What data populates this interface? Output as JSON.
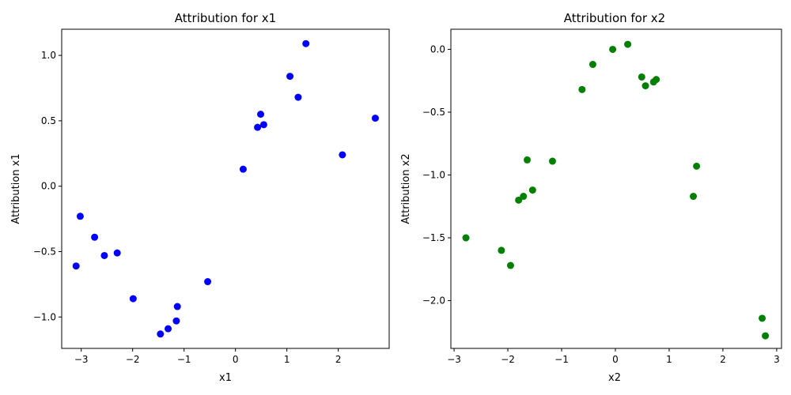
{
  "chart_data": [
    {
      "type": "scatter",
      "title": "Attribution for x1",
      "xlabel": "x1",
      "ylabel": "Attribution x1",
      "xlim": [
        -3.38,
        2.99
      ],
      "ylim": [
        -1.24,
        1.2
      ],
      "xticks": [
        -3,
        -2,
        -1,
        0,
        1,
        2
      ],
      "xtick_labels": [
        "−3",
        "−2",
        "−1",
        "0",
        "1",
        "2"
      ],
      "yticks": [
        -1.0,
        -0.5,
        0.0,
        0.5,
        1.0
      ],
      "ytick_labels": [
        "−1.0",
        "−0.5",
        "0.0",
        "0.5",
        "1.0"
      ],
      "grid": false,
      "color": "#0000ff",
      "x": [
        -3.1,
        -3.02,
        -2.74,
        -2.55,
        -2.3,
        -1.99,
        -1.46,
        -1.31,
        -1.15,
        -1.13,
        -0.54,
        0.15,
        0.43,
        0.49,
        0.55,
        1.06,
        1.22,
        1.37,
        2.08,
        2.72
      ],
      "y": [
        -0.61,
        -0.23,
        -0.39,
        -0.53,
        -0.51,
        -0.86,
        -1.13,
        -1.09,
        -1.03,
        -0.92,
        -0.73,
        0.13,
        0.45,
        0.55,
        0.47,
        0.84,
        0.68,
        1.09,
        0.24,
        0.52
      ]
    },
    {
      "type": "scatter",
      "title": "Attribution for x2",
      "xlabel": "x2",
      "ylabel": "Attribution x2",
      "xlim": [
        -3.06,
        3.09
      ],
      "ylim": [
        -2.38,
        0.16
      ],
      "xticks": [
        -3,
        -2,
        -1,
        0,
        1,
        2,
        3
      ],
      "xtick_labels": [
        "−3",
        "−2",
        "−1",
        "0",
        "1",
        "2",
        "3"
      ],
      "yticks": [
        -2.0,
        -1.5,
        -1.0,
        -0.5,
        0.0
      ],
      "ytick_labels": [
        "−2.0",
        "−1.5",
        "−1.0",
        "−0.5",
        "0.0"
      ],
      "grid": false,
      "color": "#008000",
      "x": [
        -2.78,
        -2.12,
        -1.95,
        -1.8,
        -1.71,
        -1.64,
        -1.54,
        -1.17,
        -0.62,
        -0.42,
        -0.05,
        0.23,
        0.49,
        0.56,
        0.71,
        0.76,
        1.45,
        1.51,
        2.73,
        2.79
      ],
      "y": [
        -1.5,
        -1.6,
        -1.72,
        -1.2,
        -1.17,
        -0.88,
        -1.12,
        -0.89,
        -0.32,
        -0.12,
        0.0,
        0.04,
        -0.22,
        -0.29,
        -0.26,
        -0.24,
        -1.17,
        -0.93,
        -2.14,
        -2.28
      ]
    }
  ]
}
